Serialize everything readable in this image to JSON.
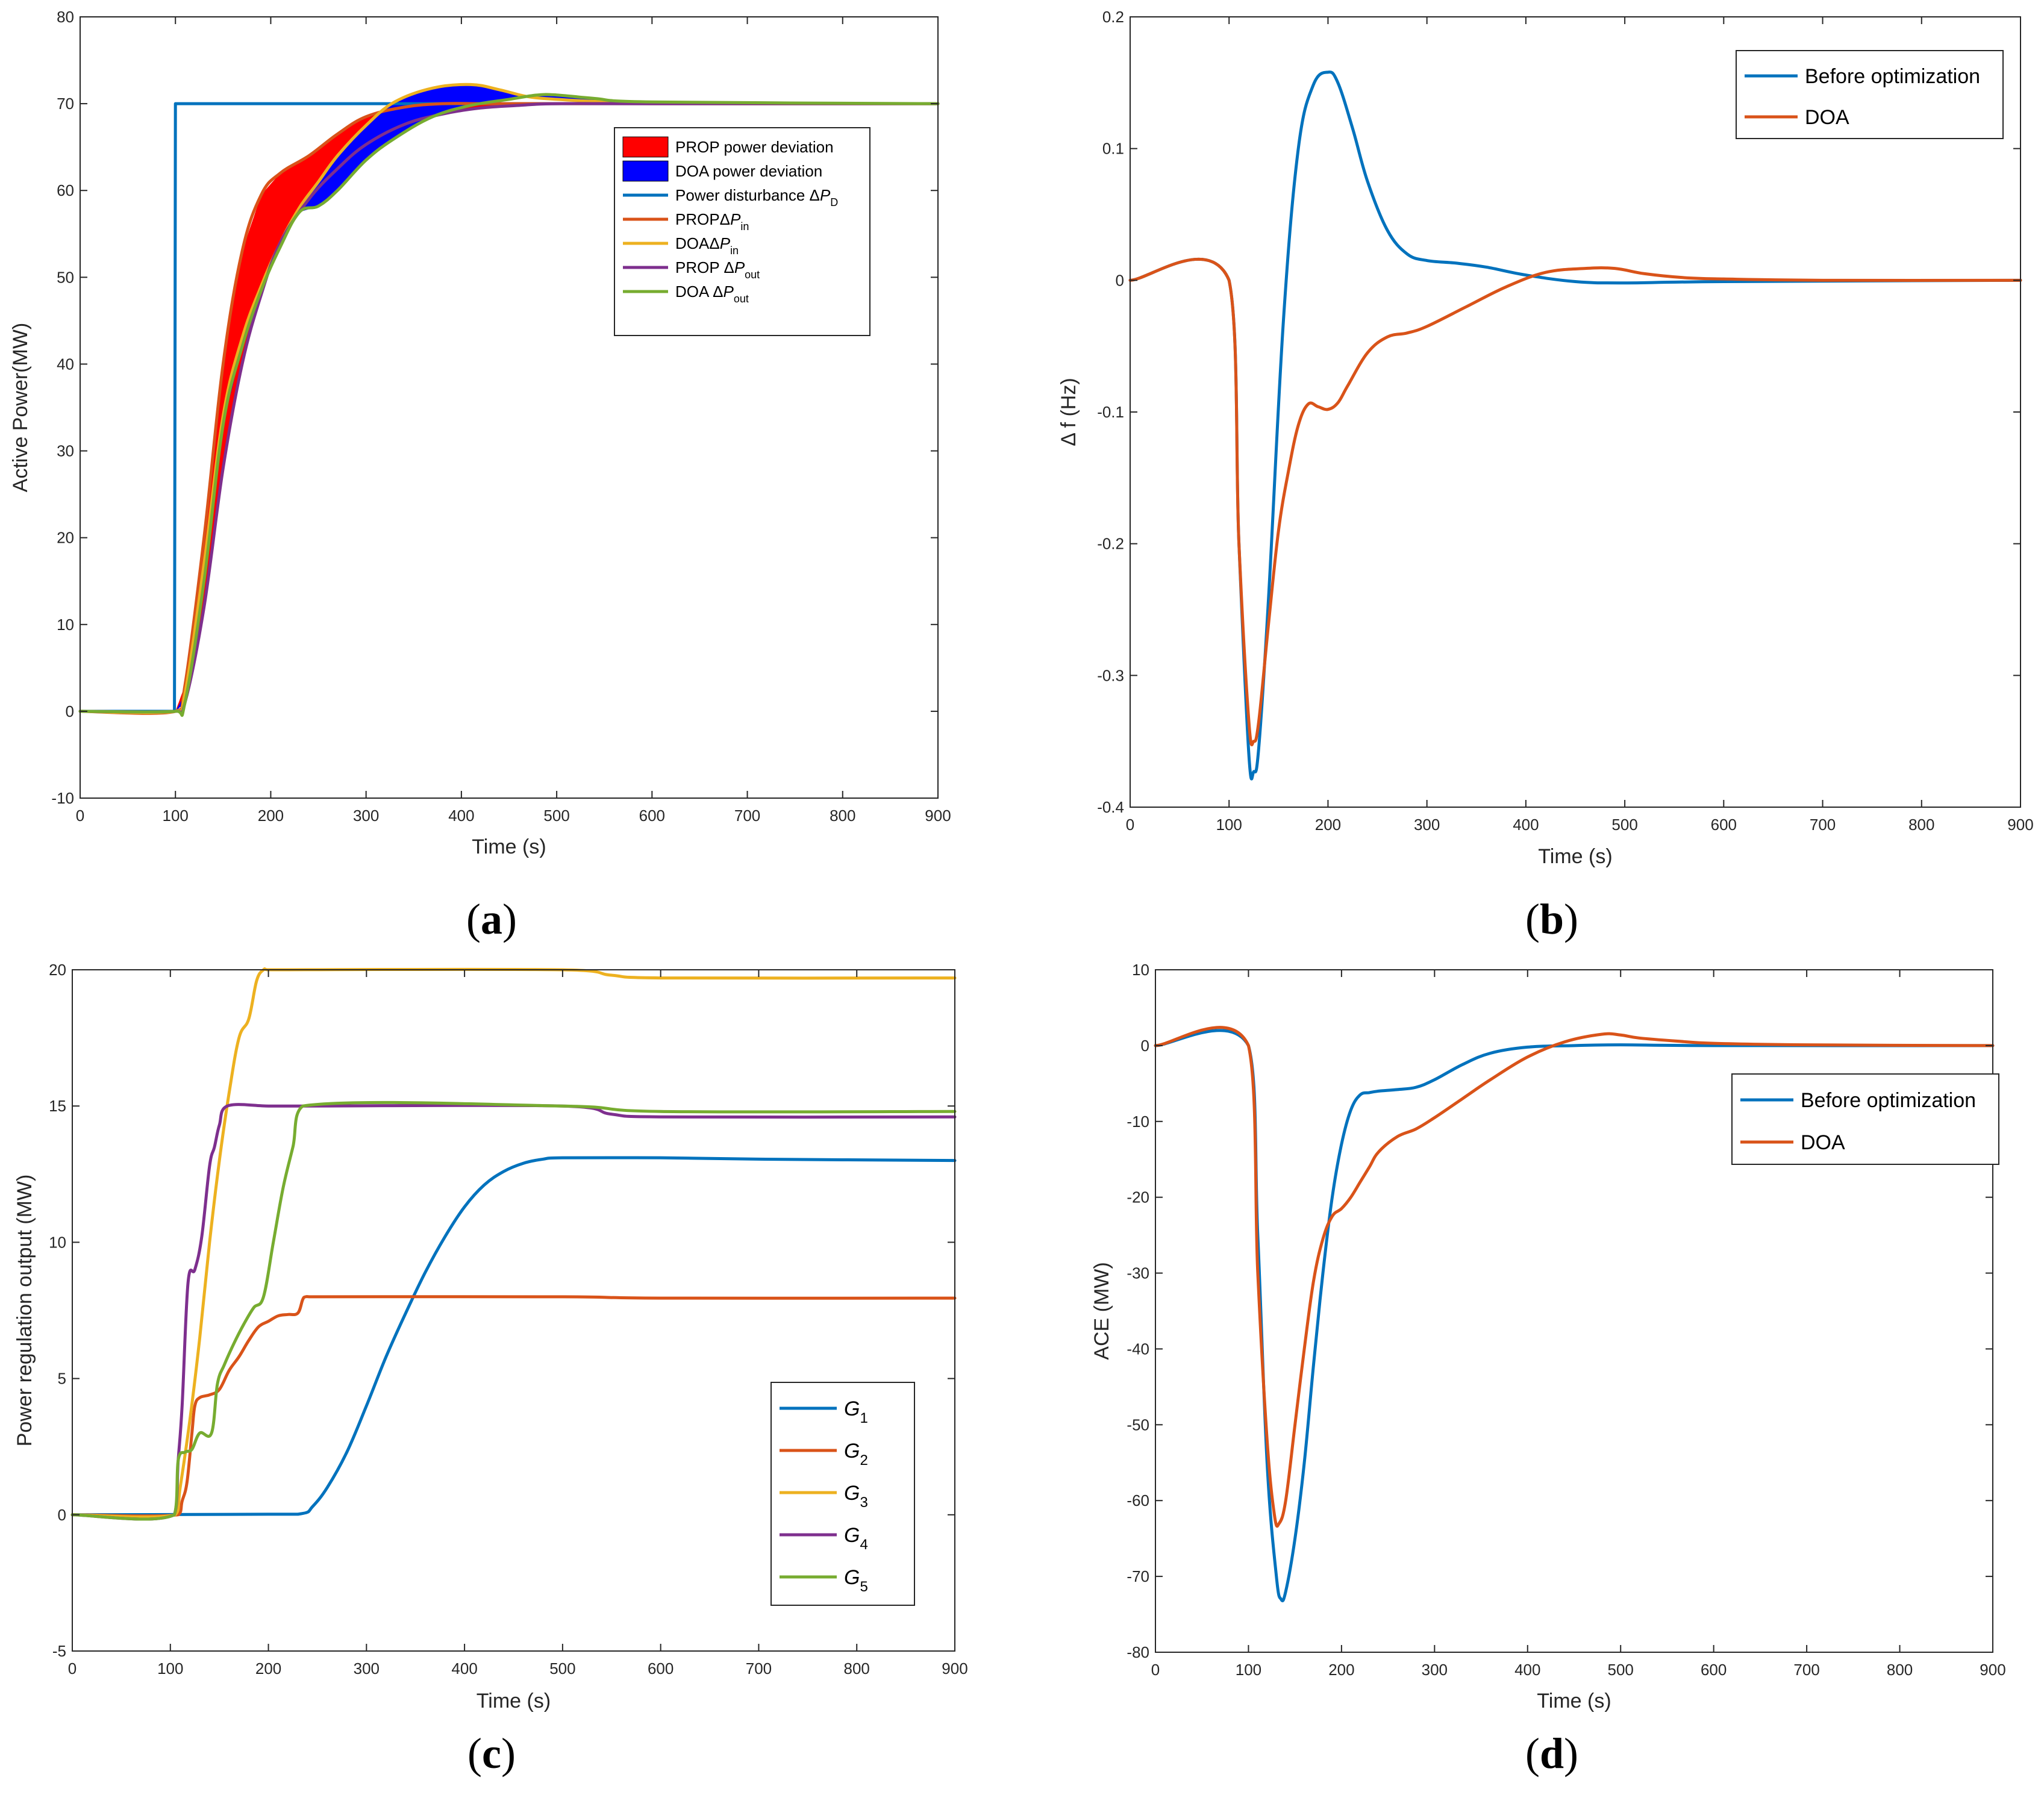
{
  "chart_data": [
    {
      "id": "a",
      "panel_label": "a",
      "type": "line",
      "xlabel": "Time (s)",
      "ylabel": "Active Power(MW)",
      "xlim": [
        0,
        900
      ],
      "ylim": [
        -10,
        80
      ],
      "xticks": [
        0,
        100,
        200,
        300,
        400,
        500,
        600,
        700,
        800,
        900
      ],
      "yticks": [
        -10,
        0,
        10,
        20,
        30,
        40,
        50,
        60,
        70,
        80
      ],
      "legend_position": "top-right",
      "fills": [
        {
          "name": "PROP power deviation",
          "color": "#ff0000",
          "upper": "PROP_in",
          "lower": "PROP_out"
        },
        {
          "name": "DOA power deviation",
          "color": "#0000ff",
          "upper": "DOA_in",
          "lower": "DOA_out"
        }
      ],
      "series": [
        {
          "key": "PD",
          "name": "Power disturbance ΔP",
          "sub": "D",
          "color": "#0072bd",
          "x": [
            0,
            99,
            100,
            900
          ],
          "y": [
            0,
            0,
            70,
            70
          ]
        },
        {
          "key": "PROP_in",
          "name": "PROPΔP",
          "sub": "in",
          "color": "#d95319",
          "x": [
            0,
            100,
            110,
            130,
            150,
            170,
            190,
            210,
            240,
            270,
            300,
            340,
            380,
            420,
            460,
            500,
            600,
            900
          ],
          "y": [
            0,
            0,
            3,
            20,
            40,
            53,
            59.5,
            62,
            64,
            66.5,
            68.5,
            69.6,
            70,
            70,
            70,
            70,
            70,
            70
          ]
        },
        {
          "key": "DOA_in",
          "name": "DOAΔP",
          "sub": "in",
          "color": "#edb120",
          "x": [
            0,
            100,
            110,
            130,
            150,
            170,
            190,
            210,
            230,
            250,
            270,
            300,
            330,
            370,
            410,
            440,
            470,
            500,
            550,
            600,
            900
          ],
          "y": [
            0,
            0,
            2,
            17,
            34,
            43,
            49,
            54,
            58,
            61,
            64,
            67.5,
            70.2,
            71.8,
            72.2,
            71.6,
            70.8,
            70.5,
            70.2,
            70,
            70
          ]
        },
        {
          "key": "PROP_out",
          "name": "PROP ΔP",
          "sub": "out",
          "color": "#7e2f8e",
          "x": [
            0,
            100,
            110,
            130,
            150,
            170,
            190,
            210,
            240,
            270,
            300,
            340,
            380,
            420,
            460,
            500,
            600,
            900
          ],
          "y": [
            0,
            0,
            1,
            12,
            28,
            40,
            48,
            54,
            59,
            62.5,
            65.3,
            67.6,
            68.8,
            69.5,
            69.8,
            70,
            70,
            70
          ]
        },
        {
          "key": "DOA_out",
          "name": "DOA ΔP",
          "sub": "out",
          "color": "#77ac30",
          "x": [
            0,
            100,
            110,
            130,
            150,
            170,
            190,
            210,
            230,
            250,
            270,
            300,
            330,
            370,
            410,
            450,
            480,
            500,
            540,
            600,
            900
          ],
          "y": [
            0,
            0,
            1,
            15,
            33,
            42,
            48.5,
            53.5,
            57.5,
            58.2,
            60,
            63.5,
            66,
            68.5,
            69.8,
            70.5,
            71,
            71,
            70.6,
            70.2,
            70
          ]
        }
      ]
    },
    {
      "id": "b",
      "panel_label": "b",
      "type": "line",
      "xlabel": "Time (s)",
      "ylabel": "Δ f (Hz)",
      "xlim": [
        0,
        900
      ],
      "ylim": [
        -0.4,
        0.2
      ],
      "xticks": [
        0,
        100,
        200,
        300,
        400,
        500,
        600,
        700,
        800,
        900
      ],
      "yticks": [
        -0.4,
        -0.3,
        -0.2,
        -0.1,
        0,
        0.1,
        0.2
      ],
      "legend_position": "top-right",
      "series": [
        {
          "name": "Before optimization",
          "color": "#0072bd",
          "x": [
            0,
            100,
            110,
            120,
            125,
            130,
            140,
            155,
            170,
            185,
            200,
            210,
            225,
            240,
            260,
            280,
            300,
            330,
            360,
            400,
            450,
            500,
            600,
            900
          ],
          "y": [
            0,
            0,
            -0.2,
            -0.36,
            -0.373,
            -0.355,
            -0.24,
            -0.03,
            0.1,
            0.148,
            0.158,
            0.15,
            0.115,
            0.075,
            0.038,
            0.02,
            0.015,
            0.013,
            0.01,
            0.004,
            -0.001,
            -0.002,
            -0.001,
            0
          ]
        },
        {
          "name": "DOA",
          "color": "#d95319",
          "x": [
            0,
            100,
            110,
            120,
            125,
            130,
            140,
            150,
            160,
            170,
            180,
            190,
            200,
            210,
            220,
            240,
            260,
            280,
            300,
            340,
            380,
            420,
            460,
            490,
            520,
            560,
            600,
            700,
            900
          ],
          "y": [
            0,
            0,
            -0.2,
            -0.335,
            -0.35,
            -0.335,
            -0.26,
            -0.19,
            -0.145,
            -0.11,
            -0.094,
            -0.096,
            -0.098,
            -0.093,
            -0.08,
            -0.055,
            -0.043,
            -0.04,
            -0.035,
            -0.02,
            -0.005,
            0.006,
            0.009,
            0.009,
            0.005,
            0.002,
            0.001,
            0,
            0
          ]
        }
      ]
    },
    {
      "id": "c",
      "panel_label": "c",
      "type": "line",
      "xlabel": "Time (s)",
      "ylabel": "Power regulation output (MW)",
      "xlim": [
        0,
        900
      ],
      "ylim": [
        -5,
        20
      ],
      "xticks": [
        0,
        100,
        200,
        300,
        400,
        500,
        600,
        700,
        800,
        900
      ],
      "yticks": [
        -5,
        0,
        5,
        10,
        15,
        20
      ],
      "legend_position": "bottom-right",
      "series": [
        {
          "name": "G",
          "sub": "1",
          "color": "#0072bd",
          "x": [
            0,
            200,
            235,
            245,
            260,
            280,
            300,
            320,
            340,
            360,
            380,
            400,
            420,
            440,
            460,
            480,
            500,
            600,
            700,
            900
          ],
          "y": [
            0,
            0.02,
            0.05,
            0.3,
            1,
            2.3,
            4,
            5.8,
            7.4,
            8.9,
            10.2,
            11.3,
            12.1,
            12.6,
            12.9,
            13.05,
            13.1,
            13.1,
            13.05,
            13
          ]
        },
        {
          "name": "G",
          "sub": "2",
          "color": "#d95319",
          "x": [
            0,
            108,
            112,
            117,
            122,
            125,
            130,
            140,
            150,
            160,
            170,
            180,
            190,
            200,
            210,
            220,
            230,
            235,
            238,
            245,
            500,
            600,
            900
          ],
          "y": [
            0,
            0,
            0.5,
            1.2,
            3,
            4,
            4.3,
            4.4,
            4.6,
            5.3,
            5.8,
            6.4,
            6.9,
            7.1,
            7.3,
            7.35,
            7.4,
            7.9,
            8,
            8,
            8,
            7.95,
            7.95
          ]
        },
        {
          "name": "G",
          "sub": "3",
          "color": "#edb120",
          "x": [
            0,
            105,
            110,
            120,
            130,
            140,
            150,
            160,
            170,
            180,
            188,
            195,
            200,
            500,
            550,
            600,
            900
          ],
          "y": [
            0,
            0,
            1,
            3.5,
            6.5,
            10,
            13,
            15.5,
            17.5,
            18.2,
            19.6,
            20,
            20,
            20,
            19.8,
            19.7,
            19.7
          ]
        },
        {
          "name": "G",
          "sub": "4",
          "color": "#7e2f8e",
          "x": [
            0,
            104,
            108,
            112,
            118,
            125,
            132,
            140,
            145,
            150,
            158,
            200,
            240,
            500,
            550,
            600,
            900
          ],
          "y": [
            0,
            0,
            2,
            4,
            8.5,
            9,
            10.2,
            12.8,
            13.5,
            14.3,
            15,
            15,
            15,
            15,
            14.7,
            14.6,
            14.6
          ]
        },
        {
          "name": "G",
          "sub": "5",
          "color": "#77ac30",
          "x": [
            0,
            104,
            108,
            115,
            122,
            130,
            142,
            148,
            155,
            165,
            175,
            185,
            195,
            205,
            215,
            225,
            235,
            500,
            600,
            900
          ],
          "y": [
            0,
            0,
            2,
            2.3,
            2.4,
            3,
            3,
            4.8,
            5.5,
            6.3,
            7,
            7.6,
            8,
            10,
            12,
            13.5,
            15,
            15,
            14.8,
            14.8
          ]
        }
      ]
    },
    {
      "id": "d",
      "panel_label": "d",
      "type": "line",
      "xlabel": "Time (s)",
      "ylabel": "ACE (MW)",
      "xlim": [
        0,
        900
      ],
      "ylim": [
        -80,
        10
      ],
      "xticks": [
        0,
        100,
        200,
        300,
        400,
        500,
        600,
        700,
        800,
        900
      ],
      "yticks": [
        -80,
        -70,
        -60,
        -50,
        -40,
        -30,
        -20,
        -10,
        0,
        10
      ],
      "legend_position": "center-right",
      "series": [
        {
          "name": "Before optimization",
          "color": "#0072bd",
          "x": [
            0,
            100,
            110,
            120,
            130,
            135,
            140,
            150,
            160,
            170,
            180,
            190,
            200,
            210,
            220,
            230,
            240,
            260,
            280,
            300,
            330,
            360,
            400,
            450,
            500,
            600,
            900
          ],
          "y": [
            0,
            0,
            -25,
            -55,
            -70,
            -73,
            -72,
            -65,
            -55,
            -42,
            -30,
            -20,
            -13,
            -8.5,
            -6.5,
            -6.2,
            -6,
            -5.8,
            -5.5,
            -4.5,
            -2.5,
            -1,
            -0.2,
            0,
            0.1,
            0,
            0
          ]
        },
        {
          "name": "DOA",
          "color": "#d95319",
          "x": [
            0,
            100,
            110,
            120,
            128,
            133,
            140,
            150,
            160,
            170,
            180,
            190,
            200,
            210,
            220,
            230,
            240,
            260,
            280,
            300,
            330,
            360,
            400,
            440,
            480,
            500,
            520,
            560,
            600,
            700,
            900
          ],
          "y": [
            0,
            0,
            -30,
            -52,
            -62,
            -63,
            -60,
            -50,
            -40,
            -31,
            -25.5,
            -22.5,
            -21.5,
            -20,
            -18,
            -16,
            -14,
            -12,
            -11,
            -9.5,
            -7,
            -4.5,
            -1.5,
            0.5,
            1.5,
            1.4,
            1,
            0.6,
            0.3,
            0.1,
            0
          ]
        }
      ]
    }
  ]
}
